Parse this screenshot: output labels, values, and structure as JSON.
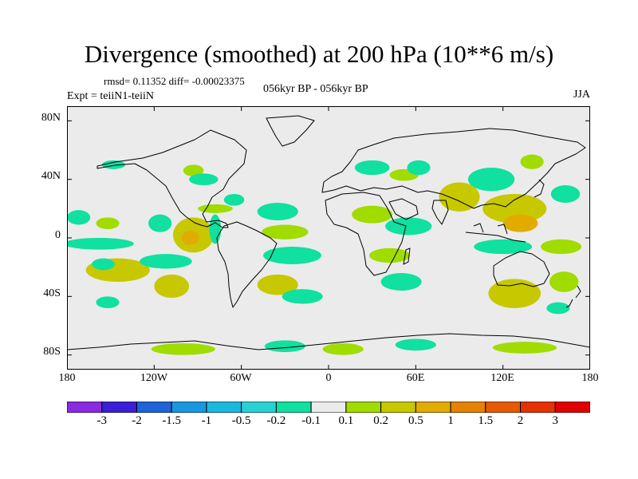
{
  "title": "Divergence (smoothed) at 200 hPa (10**6 m/s)",
  "stats": "rmsd= 0.11352 diff= -0.00023375",
  "experiment": "Expt = teiiN1-teiiN",
  "period": "056kyr BP - 056kyr BP",
  "season": "JJA",
  "map": {
    "projection": "cylindrical equidistant",
    "lon_range": [
      -180,
      180
    ],
    "lat_range": [
      -90,
      90
    ],
    "background_color": "#ebebeb",
    "lat_ticks": [
      "80N",
      "40N",
      "0",
      "40S",
      "80S"
    ],
    "lon_ticks": [
      "180",
      "120W",
      "60W",
      "0",
      "60E",
      "120E",
      "180"
    ]
  },
  "colorbar": {
    "labels": [
      "-3",
      "-2",
      "-1.5",
      "-1",
      "-0.5",
      "-0.2",
      "-0.1",
      "0.1",
      "0.2",
      "0.5",
      "1",
      "1.5",
      "2",
      "3"
    ],
    "colors": [
      "#8a2be2",
      "#3a1fd6",
      "#1e63d8",
      "#1898e0",
      "#1ab8de",
      "#28d2d4",
      "#10e0a0",
      "#ebebeb",
      "#a0dc00",
      "#c8c800",
      "#e2ab00",
      "#e68200",
      "#e65a00",
      "#e63200",
      "#e00000"
    ]
  },
  "chart_data": {
    "type": "heatmap",
    "title": "Divergence (smoothed) at 200 hPa (10**6 m/s)",
    "season": "JJA",
    "rmsd": 0.11352,
    "diff": -0.00023375,
    "x_range": [
      -180,
      180
    ],
    "y_range": [
      -90,
      90
    ],
    "levels": [
      -3,
      -2,
      -1.5,
      -1,
      -0.5,
      -0.2,
      -0.1,
      0.1,
      0.2,
      0.5,
      1,
      1.5,
      2,
      3
    ],
    "anomalies": [
      {
        "lon": -148,
        "lat": 50,
        "rx": 8,
        "ry": 3,
        "value": -0.15
      },
      {
        "lon": -93,
        "lat": 46,
        "rx": 7,
        "ry": 4,
        "value": 0.15
      },
      {
        "lon": -86,
        "lat": 40,
        "rx": 10,
        "ry": 4,
        "value": -0.15
      },
      {
        "lon": -65,
        "lat": 26,
        "rx": 7,
        "ry": 4,
        "value": -0.15
      },
      {
        "lon": -78,
        "lat": 20,
        "rx": 12,
        "ry": 3,
        "value": 0.15
      },
      {
        "lon": -172,
        "lat": 14,
        "rx": 8,
        "ry": 5,
        "value": -0.15
      },
      {
        "lon": -152,
        "lat": 10,
        "rx": 8,
        "ry": 4,
        "value": 0.15
      },
      {
        "lon": -116,
        "lat": 10,
        "rx": 8,
        "ry": 6,
        "value": -0.15
      },
      {
        "lon": -93,
        "lat": 2,
        "rx": 14,
        "ry": 12,
        "value": 0.25
      },
      {
        "lon": -95,
        "lat": 0,
        "rx": 6,
        "ry": 5,
        "value": 0.55
      },
      {
        "lon": -78,
        "lat": 6,
        "rx": 4,
        "ry": 10,
        "value": -0.15
      },
      {
        "lon": -158,
        "lat": -4,
        "rx": 24,
        "ry": 4,
        "value": -0.15
      },
      {
        "lon": -145,
        "lat": -22,
        "rx": 22,
        "ry": 8,
        "value": 0.25
      },
      {
        "lon": -155,
        "lat": -18,
        "rx": 8,
        "ry": 4,
        "value": -0.15
      },
      {
        "lon": -112,
        "lat": -16,
        "rx": 18,
        "ry": 5,
        "value": -0.15
      },
      {
        "lon": -108,
        "lat": -33,
        "rx": 12,
        "ry": 8,
        "value": 0.25
      },
      {
        "lon": -152,
        "lat": -44,
        "rx": 8,
        "ry": 4,
        "value": -0.15
      },
      {
        "lon": -35,
        "lat": 18,
        "rx": 14,
        "ry": 6,
        "value": -0.15
      },
      {
        "lon": -30,
        "lat": 4,
        "rx": 16,
        "ry": 5,
        "value": 0.15
      },
      {
        "lon": -25,
        "lat": -12,
        "rx": 20,
        "ry": 6,
        "value": -0.15
      },
      {
        "lon": -35,
        "lat": -32,
        "rx": 14,
        "ry": 7,
        "value": 0.25
      },
      {
        "lon": -18,
        "lat": -40,
        "rx": 14,
        "ry": 5,
        "value": -0.15
      },
      {
        "lon": 30,
        "lat": 48,
        "rx": 12,
        "ry": 5,
        "value": -0.15
      },
      {
        "lon": 52,
        "lat": 43,
        "rx": 10,
        "ry": 4,
        "value": 0.15
      },
      {
        "lon": 62,
        "lat": 48,
        "rx": 8,
        "ry": 5,
        "value": -0.15
      },
      {
        "lon": 30,
        "lat": 16,
        "rx": 14,
        "ry": 6,
        "value": 0.15
      },
      {
        "lon": 55,
        "lat": 8,
        "rx": 16,
        "ry": 6,
        "value": -0.15
      },
      {
        "lon": 42,
        "lat": -12,
        "rx": 14,
        "ry": 5,
        "value": 0.15
      },
      {
        "lon": 50,
        "lat": -30,
        "rx": 14,
        "ry": 6,
        "value": -0.15
      },
      {
        "lon": 90,
        "lat": 28,
        "rx": 14,
        "ry": 10,
        "value": 0.25
      },
      {
        "lon": 112,
        "lat": 40,
        "rx": 16,
        "ry": 8,
        "value": -0.15
      },
      {
        "lon": 128,
        "lat": 20,
        "rx": 22,
        "ry": 10,
        "value": 0.25
      },
      {
        "lon": 132,
        "lat": 10,
        "rx": 12,
        "ry": 6,
        "value": 0.55
      },
      {
        "lon": 120,
        "lat": -6,
        "rx": 20,
        "ry": 5,
        "value": -0.15
      },
      {
        "lon": 140,
        "lat": 52,
        "rx": 8,
        "ry": 5,
        "value": 0.15
      },
      {
        "lon": 163,
        "lat": 30,
        "rx": 10,
        "ry": 6,
        "value": -0.15
      },
      {
        "lon": 160,
        "lat": -6,
        "rx": 14,
        "ry": 5,
        "value": 0.15
      },
      {
        "lon": 128,
        "lat": -38,
        "rx": 18,
        "ry": 10,
        "value": 0.25
      },
      {
        "lon": 162,
        "lat": -30,
        "rx": 10,
        "ry": 7,
        "value": 0.15
      },
      {
        "lon": 158,
        "lat": -48,
        "rx": 8,
        "ry": 4,
        "value": -0.15
      },
      {
        "lon": -100,
        "lat": -76,
        "rx": 22,
        "ry": 4,
        "value": 0.15
      },
      {
        "lon": -30,
        "lat": -74,
        "rx": 14,
        "ry": 4,
        "value": -0.15
      },
      {
        "lon": 10,
        "lat": -76,
        "rx": 14,
        "ry": 4,
        "value": 0.15
      },
      {
        "lon": 60,
        "lat": -73,
        "rx": 14,
        "ry": 4,
        "value": -0.15
      },
      {
        "lon": 135,
        "lat": -75,
        "rx": 22,
        "ry": 4,
        "value": 0.15
      }
    ]
  }
}
